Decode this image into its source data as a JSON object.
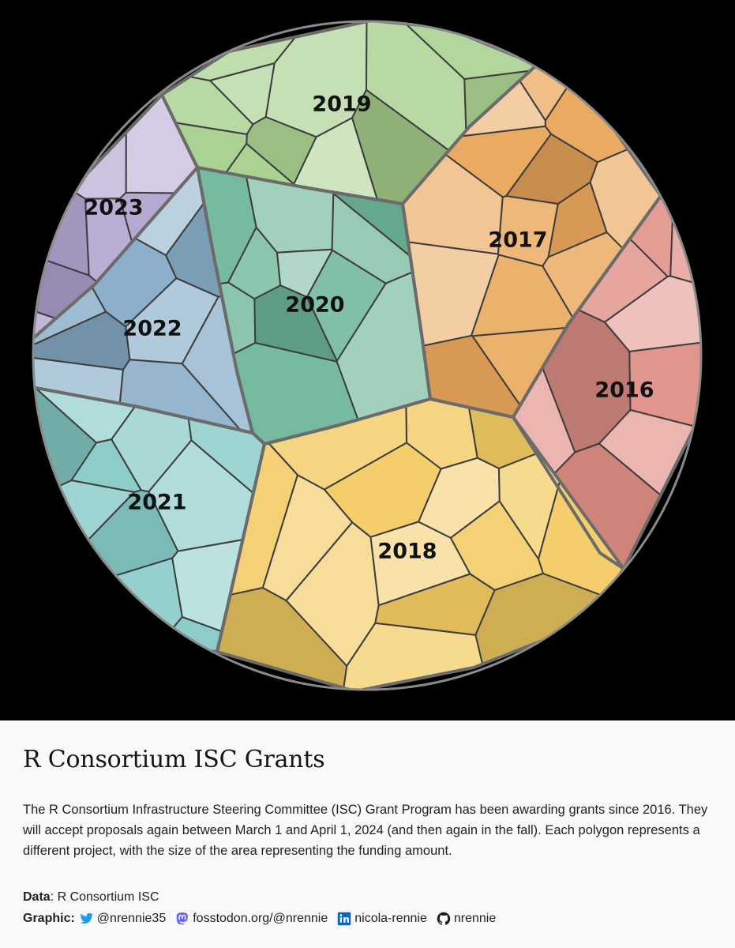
{
  "title": "R Consortium ISC Grants",
  "description": "The R Consortium Infrastructure Steering Committee (ISC) Grant Program has been awarding grants since 2016. They will accept proposals again between March 1 and April 1, 2024 (and then again in the fall). Each polygon represents a different project, with the size of the area representing the funding amount.",
  "data_credit": {
    "label": "Data",
    "value": ": R Consortium ISC"
  },
  "graphic_credit": {
    "label": "Graphic",
    "twitter": "@nrennie35",
    "mastodon": "fosstodon.org/@nrennie",
    "linkedin": "nicola-rennie",
    "github": "nrennie"
  },
  "colors": {
    "background": "#000000",
    "caption_bg": "#f9f9f9",
    "twitter": "#1d9bf0",
    "mastodon": "#6364ff",
    "linkedin": "#0a66c2",
    "github": "#1a1a1a"
  },
  "chart_data": {
    "type": "voronoi-treemap",
    "note": "Each polygon is one funded project; polygon area proportional to funding amount. Groups are grant years.",
    "groups": [
      {
        "name": "2016",
        "color": "#e08f86",
        "project_count": 9
      },
      {
        "name": "2017",
        "color": "#eaa65a",
        "project_count": 14
      },
      {
        "name": "2018",
        "color": "#f2cb62",
        "project_count": 16
      },
      {
        "name": "2019",
        "color": "#a8d08d",
        "project_count": 12
      },
      {
        "name": "2020",
        "color": "#6fb79a",
        "project_count": 11
      },
      {
        "name": "2021",
        "color": "#86cac7",
        "project_count": 11
      },
      {
        "name": "2022",
        "color": "#86acc7",
        "project_count": 9
      },
      {
        "name": "2023",
        "color": "#b1a3cf",
        "project_count": 7
      }
    ]
  }
}
